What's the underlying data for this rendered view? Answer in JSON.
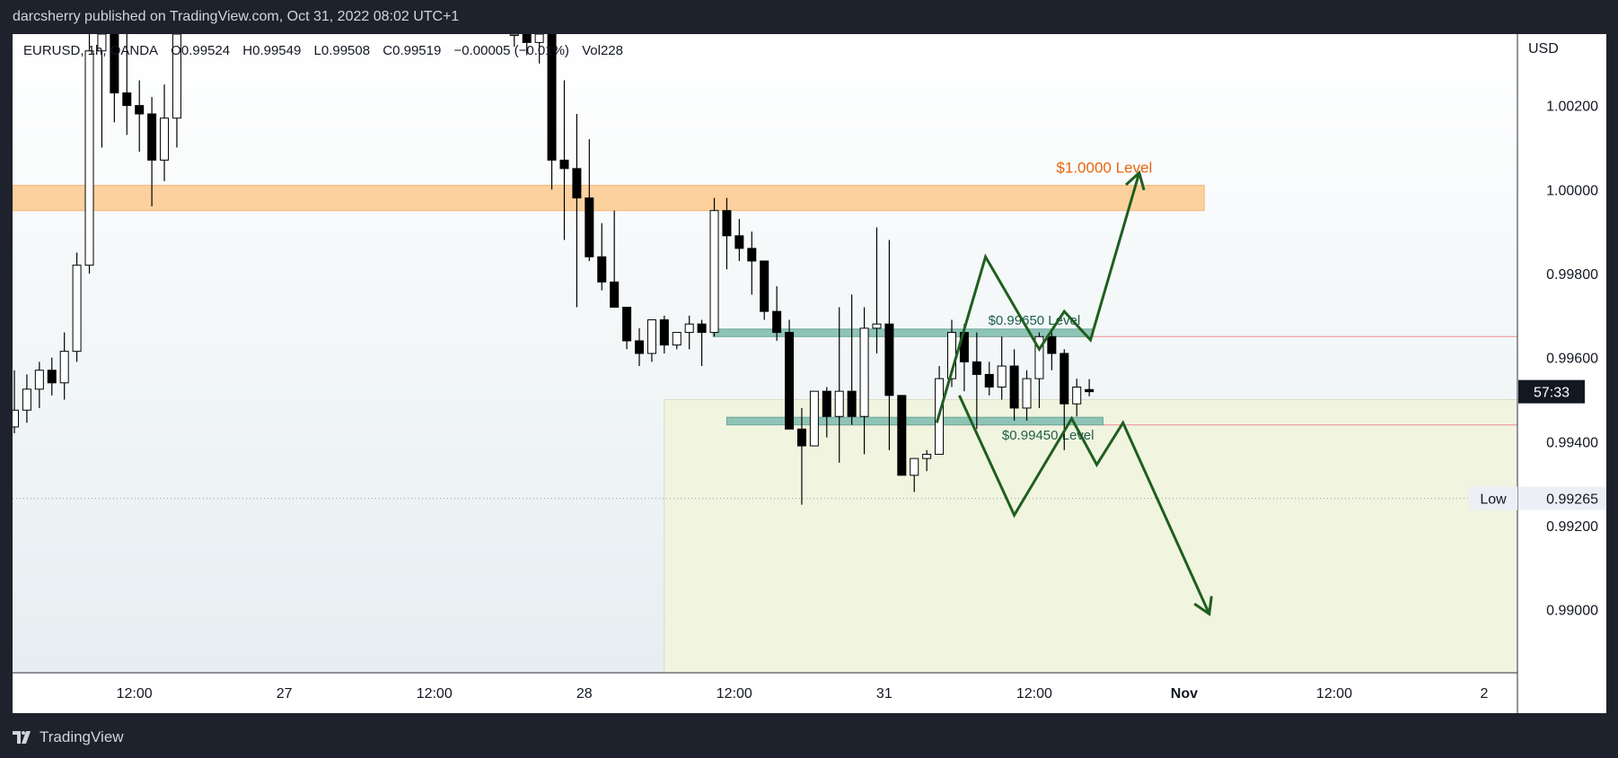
{
  "header": {
    "publish_text": "darcsherry published on TradingView.com, Oct 31, 2022 08:02 UTC+1"
  },
  "legend": {
    "symbol": "EURUSD, 1h, OANDA",
    "open": "O0.99524",
    "high": "H0.99549",
    "low": "L0.99508",
    "close": "C0.99519",
    "change": "−0.00005 (−0.01%)",
    "volume": "Vol228"
  },
  "axis": {
    "currency": "USD",
    "countdown": "57:33",
    "low_label": "Low",
    "low_value": "0.99265"
  },
  "footer": {
    "brand": "TradingView"
  },
  "colors": {
    "bull_body": "#ffffff",
    "bear_body": "#000000",
    "orange_zone": "#fcd19e",
    "teal_zone": "#8ec4b6",
    "range_box": "#f1f4df",
    "arrow": "#1f5e1f",
    "level_line": "#f0a0a8",
    "orange_text": "#e8650c",
    "teal_text": "#1c5f4a"
  },
  "chart_data": {
    "type": "candlestick",
    "symbol": "EURUSD",
    "timeframe": "1h",
    "ylim": [
      0.9885,
      1.0037
    ],
    "y_ticks": [
      "1.00200",
      "1.00000",
      "0.99800",
      "0.99600",
      "0.99400",
      "0.99200",
      "0.99000"
    ],
    "x_ticks": [
      {
        "label": "12:00",
        "hour": 9.6
      },
      {
        "label": "27",
        "hour": 21.6
      },
      {
        "label": "12:00",
        "hour": 33.6
      },
      {
        "label": "28",
        "hour": 45.6
      },
      {
        "label": "12:00",
        "hour": 57.6
      },
      {
        "label": "31",
        "hour": 69.6
      },
      {
        "label": "12:00",
        "hour": 81.6
      },
      {
        "label": "Nov",
        "hour": 93.6
      },
      {
        "label": "12:00",
        "hour": 105.6
      },
      {
        "label": "2",
        "hour": 117.6
      }
    ],
    "candles": [
      [
        0.99435,
        0.9957,
        0.9942,
        0.99475
      ],
      [
        0.99475,
        0.9956,
        0.99445,
        0.99525
      ],
      [
        0.99525,
        0.9959,
        0.9948,
        0.9957
      ],
      [
        0.9957,
        0.996,
        0.9951,
        0.9954
      ],
      [
        0.9954,
        0.9966,
        0.995,
        0.99615
      ],
      [
        0.99615,
        0.9985,
        0.9959,
        0.9982
      ],
      [
        0.9982,
        1.0037,
        0.998,
        1.0033
      ],
      [
        1.0033,
        1.0037,
        1.001,
        1.0037
      ],
      [
        1.0037,
        1.0037,
        1.0016,
        1.0023
      ],
      [
        1.0023,
        1.0037,
        1.0013,
        1.002
      ],
      [
        1.002,
        1.0026,
        1.0009,
        1.0018
      ],
      [
        1.0018,
        1.0022,
        0.9996,
        1.0007
      ],
      [
        1.0007,
        1.0025,
        1.0002,
        1.0017
      ],
      [
        1.0017,
        1.0037,
        1.001,
        1.0037
      ],
      null,
      null,
      null,
      null,
      null,
      null,
      null,
      null,
      null,
      null,
      null,
      null,
      null,
      null,
      null,
      null,
      null,
      null,
      null,
      null,
      null,
      null,
      null,
      null,
      null,
      null,
      [
        1.0037,
        1.0037,
        1.0034,
        1.0037
      ],
      [
        1.0037,
        1.0037,
        1.0032,
        1.0035
      ],
      [
        1.0035,
        1.0037,
        1.003,
        1.0037
      ],
      [
        1.0037,
        1.0037,
        1.0,
        1.0007
      ],
      [
        1.0007,
        1.0026,
        0.9988,
        1.0005
      ],
      [
        1.0005,
        1.0018,
        0.9972,
        0.9998
      ],
      [
        0.9998,
        1.0012,
        0.9983,
        0.9984
      ],
      [
        0.9984,
        0.9992,
        0.9976,
        0.9978
      ],
      [
        0.9978,
        0.9995,
        0.9975,
        0.9972
      ],
      [
        0.9972,
        0.997,
        0.9962,
        0.9964
      ],
      [
        0.9964,
        0.9967,
        0.9958,
        0.9961
      ],
      [
        0.9961,
        0.9969,
        0.9959,
        0.9969
      ],
      [
        0.9969,
        0.997,
        0.9961,
        0.9963
      ],
      [
        0.9963,
        0.9966,
        0.9962,
        0.9966
      ],
      [
        0.9966,
        0.997,
        0.9962,
        0.9968
      ],
      [
        0.9968,
        0.9969,
        0.9958,
        0.9966
      ],
      [
        0.9966,
        0.9998,
        0.9965,
        0.9995
      ],
      [
        0.9995,
        0.9998,
        0.9981,
        0.9989
      ],
      [
        0.9989,
        0.9993,
        0.9983,
        0.9986
      ],
      [
        0.9986,
        0.999,
        0.9975,
        0.9983
      ],
      [
        0.9983,
        0.9981,
        0.9969,
        0.9971
      ],
      [
        0.9971,
        0.9977,
        0.9964,
        0.9966
      ],
      [
        0.9966,
        0.9969,
        0.9944,
        0.9943
      ],
      [
        0.9943,
        0.9948,
        0.9925,
        0.9939
      ],
      [
        0.9939,
        0.9951,
        0.9939,
        0.9952
      ],
      [
        0.9952,
        0.9953,
        0.9941,
        0.9946
      ],
      [
        0.9946,
        0.9972,
        0.9935,
        0.9952
      ],
      [
        0.9952,
        0.9975,
        0.9944,
        0.9946
      ],
      [
        0.9946,
        0.9972,
        0.9937,
        0.9967
      ],
      [
        0.9967,
        0.9991,
        0.9961,
        0.9968
      ],
      [
        0.9968,
        0.9988,
        0.9938,
        0.9951
      ],
      [
        0.9951,
        0.9949,
        0.9935,
        0.9932
      ],
      [
        0.9932,
        0.9936,
        0.9928,
        0.9936
      ],
      [
        0.9936,
        0.9938,
        0.9933,
        0.9937
      ],
      [
        0.9937,
        0.9958,
        0.9937,
        0.9955
      ],
      [
        0.9955,
        0.9969,
        0.9953,
        0.9966
      ],
      [
        0.9966,
        0.9968,
        0.9952,
        0.9959
      ],
      [
        0.9959,
        0.9966,
        0.9943,
        0.9956
      ],
      [
        0.9956,
        0.9959,
        0.9951,
        0.9953
      ],
      [
        0.9953,
        0.9965,
        0.995,
        0.9958
      ],
      [
        0.9958,
        0.9962,
        0.9945,
        0.9948
      ],
      [
        0.9948,
        0.9957,
        0.9945,
        0.9955
      ],
      [
        0.9955,
        0.9966,
        0.9948,
        0.9965
      ],
      [
        0.9965,
        0.9966,
        0.9957,
        0.9961
      ],
      [
        0.9961,
        0.9962,
        0.9938,
        0.9949
      ],
      [
        0.9949,
        0.9955,
        0.9946,
        0.9953
      ],
      [
        0.99524,
        0.99549,
        0.99508,
        0.99519
      ]
    ],
    "zones": [
      {
        "label": "$1.0000 Level",
        "top": 1.0001,
        "bottom": 0.9995
      },
      {
        "label": "$0.99650 Level",
        "top": 0.99668,
        "bottom": 0.9965
      },
      {
        "label": "$0.99450 Level",
        "top": 0.99458,
        "bottom": 0.9944
      }
    ],
    "range_box": {
      "top": 0.995,
      "bottom": 0.9885,
      "start_hour": 52.0,
      "end_hour": 130.0
    },
    "h_lines": [
      0.9965,
      0.9944
    ],
    "low_line": 0.99265,
    "current_price": 0.99519,
    "bull_path": [
      [
        73.8,
        0.99445
      ],
      [
        77.7,
        0.9984
      ],
      [
        82.0,
        0.9962
      ],
      [
        84.0,
        0.9971
      ],
      [
        86.1,
        0.99642
      ],
      [
        90.0,
        1.0004
      ]
    ],
    "bear_path": [
      [
        75.6,
        0.9951
      ],
      [
        80.0,
        0.99225
      ],
      [
        84.6,
        0.99455
      ],
      [
        86.6,
        0.99345
      ],
      [
        88.7,
        0.99445
      ],
      [
        95.6,
        0.9899
      ]
    ]
  }
}
